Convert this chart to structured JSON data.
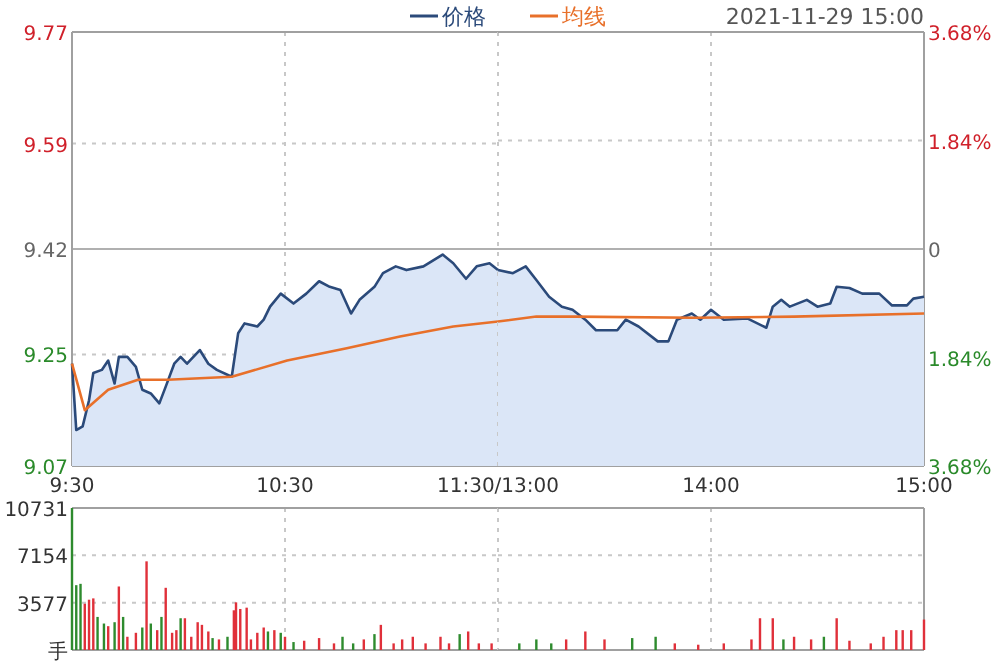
{
  "chart_data": [
    {
      "type": "line",
      "legend": "top",
      "xlim": [
        9.5,
        11.5
      ],
      "xticks": [
        {
          "value": 9.5,
          "label": "9:30"
        },
        {
          "value": 10.5,
          "label": "10:30"
        },
        {
          "value": 11.5,
          "label": "11:30/13:00"
        }
      ],
      "ylim": [
        9.07,
        9.77
      ],
      "yticks": [
        9.07,
        9.25,
        9.42,
        9.59,
        9.77
      ],
      "grid": true,
      "ref_lines": [
        {
          "axis": "y",
          "value": 9.42,
          "color": "#b0b0b0",
          "line_style": "solid"
        }
      ],
      "series": [
        {
          "name": "价格",
          "type": "area",
          "color": "#2b4a7a",
          "x": [
            9.5,
            9.52,
            9.55,
            9.58,
            9.6,
            9.64,
            9.67,
            9.7,
            9.72,
            9.76,
            9.8,
            9.83,
            9.87,
            9.91,
            9.94,
            9.98,
            10.01,
            10.04,
            10.1,
            10.14,
            10.18,
            10.25,
            10.28,
            10.31,
            10.37,
            10.4,
            10.43,
            10.48,
            10.54,
            10.6,
            10.66,
            10.71,
            10.76,
            10.81,
            10.85,
            10.92,
            10.96,
            11.02,
            11.07,
            11.15,
            11.24,
            11.29,
            11.35,
            11.4,
            11.46,
            11.5
          ],
          "values": [
            9.235,
            9.128,
            9.134,
            9.176,
            9.22,
            9.225,
            9.24,
            9.203,
            9.246,
            9.246,
            9.23,
            9.193,
            9.187,
            9.171,
            9.198,
            9.235,
            9.246,
            9.235,
            9.257,
            9.235,
            9.225,
            9.214,
            9.284,
            9.3,
            9.295,
            9.306,
            9.327,
            9.348,
            9.332,
            9.348,
            9.368,
            9.359,
            9.354,
            9.316,
            9.338,
            9.359,
            9.381,
            9.392,
            9.386,
            9.392,
            9.411,
            9.397,
            9.372,
            9.392,
            9.397,
            9.386
          ]
        },
        {
          "name": "均线",
          "type": "line",
          "color": "#e8702a",
          "x": [
            9.5,
            9.56,
            9.67,
            9.81,
            9.95,
            10.25,
            10.51,
            10.79,
            11.04,
            11.29,
            11.5
          ],
          "values": [
            9.235,
            9.16,
            9.193,
            9.209,
            9.209,
            9.214,
            9.24,
            9.26,
            9.279,
            9.295,
            9.303
          ]
        }
      ]
    },
    {
      "type": "line",
      "annotations": [
        "2021-11-29 15:00"
      ],
      "xlim": [
        13,
        15
      ],
      "xticks": [
        {
          "value": 13,
          "label": null
        },
        {
          "value": 14,
          "label": "14:00"
        },
        {
          "value": 15,
          "label": "15:00"
        }
      ],
      "ylim": [
        9.07,
        9.77
      ],
      "y2lim": [
        -3.68,
        3.68
      ],
      "y2ticks": [
        {
          "value": -3.68,
          "label": "3.68%"
        },
        {
          "value": -1.84,
          "label": "1.84%"
        },
        {
          "value": 0,
          "label": "0"
        },
        {
          "value": 1.84,
          "label": "1.84%"
        },
        {
          "value": 3.68,
          "label": "3.68%"
        }
      ],
      "grid": true,
      "ref_lines": [
        {
          "axis": "y",
          "value": 9.42,
          "color": "#b0b0b0",
          "line_style": "solid"
        }
      ],
      "series": [
        {
          "type": "area",
          "color": "#2b4a7a",
          "x": [
            13,
            13.07,
            13.13,
            13.18,
            13.24,
            13.3,
            13.35,
            13.41,
            13.46,
            13.56,
            13.6,
            13.66,
            13.75,
            13.8,
            13.84,
            13.91,
            13.95,
            14,
            14.06,
            14.17,
            14.26,
            14.29,
            14.33,
            14.37,
            14.45,
            14.5,
            14.56,
            14.59,
            14.65,
            14.71,
            14.79,
            14.85,
            14.92,
            14.95,
            15
          ],
          "values": [
            9.386,
            9.381,
            9.392,
            9.37,
            9.343,
            9.327,
            9.322,
            9.306,
            9.289,
            9.289,
            9.306,
            9.295,
            9.271,
            9.271,
            9.306,
            9.316,
            9.306,
            9.322,
            9.306,
            9.308,
            9.293,
            9.327,
            9.338,
            9.327,
            9.338,
            9.327,
            9.332,
            9.359,
            9.357,
            9.348,
            9.348,
            9.329,
            9.329,
            9.34,
            9.343
          ]
        },
        {
          "type": "line",
          "color": "#e8702a",
          "x": [
            13,
            13.18,
            13.36,
            13.92,
            14.39,
            15
          ],
          "values": [
            9.303,
            9.311,
            9.311,
            9.309,
            9.311,
            9.316
          ]
        }
      ]
    },
    {
      "type": "bar",
      "xlim": [
        9.5,
        11.5
      ],
      "ylim": [
        0,
        10731
      ],
      "yticks": [
        {
          "value": 0,
          "label": "手"
        },
        3577,
        7154,
        10731
      ],
      "tick_labels": "y",
      "grid": true,
      "x": [
        9.5,
        9.52,
        9.54,
        9.56,
        9.58,
        9.6,
        9.62,
        9.65,
        9.67,
        9.7,
        9.72,
        9.74,
        9.76,
        9.8,
        9.83,
        9.85,
        9.87,
        9.9,
        9.92,
        9.94,
        9.97,
        9.99,
        10.01,
        10.03,
        10.06,
        10.09,
        10.11,
        10.14,
        10.16,
        10.19,
        10.23,
        10.26,
        10.27,
        10.29,
        10.32,
        10.34,
        10.37,
        10.4,
        10.42,
        10.45,
        10.48,
        10.5,
        10.54,
        10.59,
        10.66,
        10.73,
        10.77,
        10.82,
        10.87,
        10.92,
        10.95,
        11.01,
        11.05,
        11.1,
        11.16,
        11.23,
        11.27,
        11.32,
        11.36,
        11.41,
        11.47
      ],
      "values": [
        10731,
        4900,
        5000,
        3500,
        3800,
        3900,
        2500,
        2000,
        1800,
        2100,
        4800,
        2500,
        1000,
        1300,
        1700,
        6700,
        2000,
        1500,
        2500,
        4700,
        1300,
        1500,
        2400,
        2400,
        1000,
        2100,
        1900,
        1400,
        900,
        800,
        1000,
        3000,
        3600,
        3100,
        3200,
        800,
        1300,
        1700,
        1400,
        1500,
        1300,
        1000,
        600,
        700,
        900,
        500,
        1000,
        500,
        800,
        1200,
        1900,
        500,
        800,
        1000,
        500,
        1000,
        500,
        1200,
        1400,
        500,
        500
      ],
      "colors": [
        "#2e8b2e",
        "#2e8b2e",
        "#2e8b2e",
        "#e0303a",
        "#e0303a",
        "#e0303a",
        "#2e8b2e",
        "#2e8b2e",
        "#e0303a",
        "#2e8b2e",
        "#e0303a",
        "#2e8b2e",
        "#e0303a",
        "#e0303a",
        "#2e8b2e",
        "#e0303a",
        "#2e8b2e",
        "#e0303a",
        "#2e8b2e",
        "#e0303a",
        "#e0303a",
        "#e0303a",
        "#2e8b2e",
        "#e0303a",
        "#e0303a",
        "#e0303a",
        "#e0303a",
        "#e0303a",
        "#2e8b2e",
        "#e0303a",
        "#2e8b2e",
        "#e0303a",
        "#e0303a",
        "#e0303a",
        "#e0303a",
        "#e0303a",
        "#e0303a",
        "#e0303a",
        "#2e8b2e",
        "#e0303a",
        "#2e8b2e",
        "#e0303a",
        "#2e8b2e",
        "#e0303a",
        "#e0303a",
        "#e0303a",
        "#2e8b2e",
        "#2e8b2e",
        "#e0303a",
        "#2e8b2e",
        "#e0303a",
        "#e0303a",
        "#e0303a",
        "#e0303a",
        "#e0303a",
        "#e0303a",
        "#e0303a",
        "#2e8b2e",
        "#e0303a",
        "#e0303a",
        "#e0303a"
      ]
    },
    {
      "type": "bar",
      "xlim": [
        13,
        15
      ],
      "ylim": [
        0,
        10731
      ],
      "yticks": [
        0,
        3577,
        7154,
        10731
      ],
      "tick_labels": false,
      "grid": true,
      "x": [
        13.1,
        13.18,
        13.25,
        13.32,
        13.41,
        13.5,
        13.63,
        13.74,
        13.83,
        13.94,
        14.06,
        14.19,
        14.23,
        14.29,
        14.34,
        14.39,
        14.47,
        14.53,
        14.59,
        14.65,
        14.75,
        14.81,
        14.87,
        14.9,
        14.94,
        15
      ],
      "values": [
        500,
        800,
        500,
        800,
        1400,
        800,
        900,
        1000,
        500,
        400,
        500,
        800,
        2400,
        2400,
        800,
        1000,
        800,
        1000,
        2400,
        700,
        500,
        1000,
        1500,
        1500,
        1500,
        2300
      ],
      "colors": [
        "#2e8b2e",
        "#2e8b2e",
        "#2e8b2e",
        "#e0303a",
        "#e0303a",
        "#e0303a",
        "#2e8b2e",
        "#2e8b2e",
        "#e0303a",
        "#e0303a",
        "#e0303a",
        "#e0303a",
        "#e0303a",
        "#e0303a",
        "#2e8b2e",
        "#e0303a",
        "#e0303a",
        "#2e8b2e",
        "#e0303a",
        "#e0303a",
        "#e0303a",
        "#e0303a",
        "#e0303a",
        "#e0303a",
        "#e0303a",
        "#e0303a"
      ]
    }
  ]
}
